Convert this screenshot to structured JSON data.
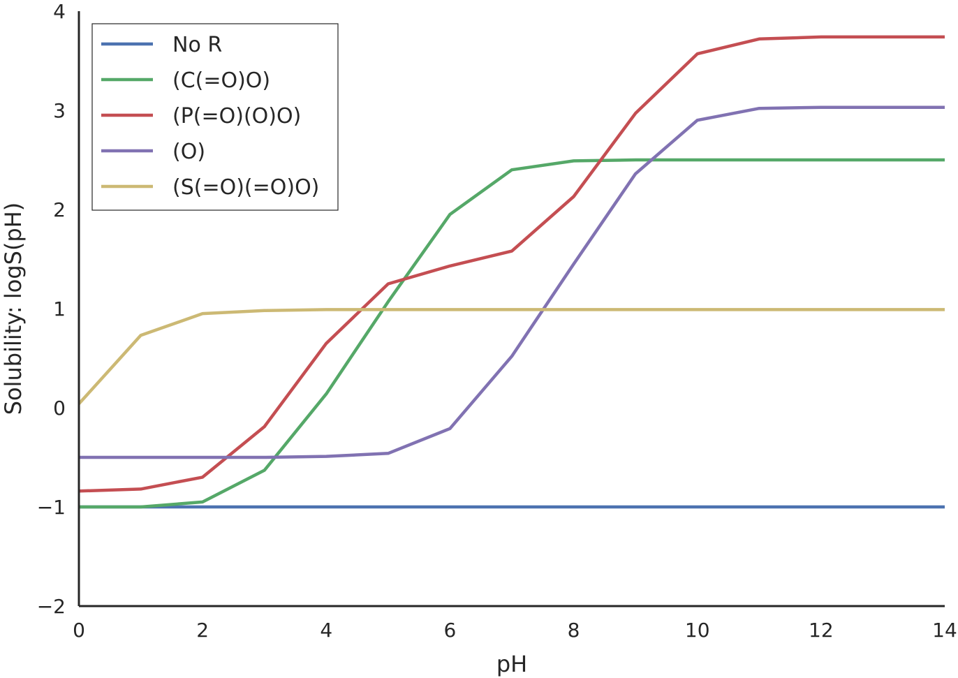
{
  "chart_data": {
    "type": "line",
    "title": "",
    "xlabel": "pH",
    "ylabel": "Solubility: logS(pH)",
    "xlim": [
      0,
      14
    ],
    "ylim": [
      -2,
      4
    ],
    "xticks": [
      0,
      2,
      4,
      6,
      8,
      10,
      12,
      14
    ],
    "xtick_labels": [
      "0",
      "2",
      "4",
      "6",
      "8",
      "10",
      "12",
      "14"
    ],
    "yticks": [
      -2,
      -1,
      0,
      1,
      2,
      3,
      4
    ],
    "ytick_labels": [
      "−2",
      "−1",
      "0",
      "1",
      "2",
      "3",
      "4"
    ],
    "grid": false,
    "legend_position": "top-left",
    "x": [
      0,
      1,
      2,
      3,
      4,
      5,
      6,
      7,
      8,
      9,
      10,
      11,
      12,
      13,
      14
    ],
    "series": [
      {
        "name": "No R",
        "color": "#4c72b0",
        "values": [
          -1.0,
          -1.0,
          -1.0,
          -1.0,
          -1.0,
          -1.0,
          -1.0,
          -1.0,
          -1.0,
          -1.0,
          -1.0,
          -1.0,
          -1.0,
          -1.0,
          -1.0
        ]
      },
      {
        "name": "(C(=O)O)",
        "color": "#55a868",
        "values": [
          -1.0,
          -1.0,
          -0.95,
          -0.63,
          0.14,
          1.07,
          1.95,
          2.4,
          2.49,
          2.5,
          2.5,
          2.5,
          2.5,
          2.5,
          2.5
        ]
      },
      {
        "name": "(P(=O)(O)O)",
        "color": "#c44e52",
        "values": [
          -0.84,
          -0.82,
          -0.7,
          -0.19,
          0.65,
          1.25,
          1.43,
          1.58,
          2.13,
          2.97,
          3.57,
          3.72,
          3.74,
          3.74,
          3.74
        ]
      },
      {
        "name": "(O)",
        "color": "#8172b2",
        "values": [
          -0.5,
          -0.5,
          -0.5,
          -0.5,
          -0.49,
          -0.46,
          -0.21,
          0.52,
          1.45,
          2.36,
          2.9,
          3.02,
          3.03,
          3.03,
          3.03
        ]
      },
      {
        "name": "(S(=O)(=O)O)",
        "color": "#ccb974",
        "values": [
          0.04,
          0.73,
          0.95,
          0.98,
          0.99,
          0.99,
          0.99,
          0.99,
          0.99,
          0.99,
          0.99,
          0.99,
          0.99,
          0.99,
          0.99
        ]
      }
    ]
  }
}
